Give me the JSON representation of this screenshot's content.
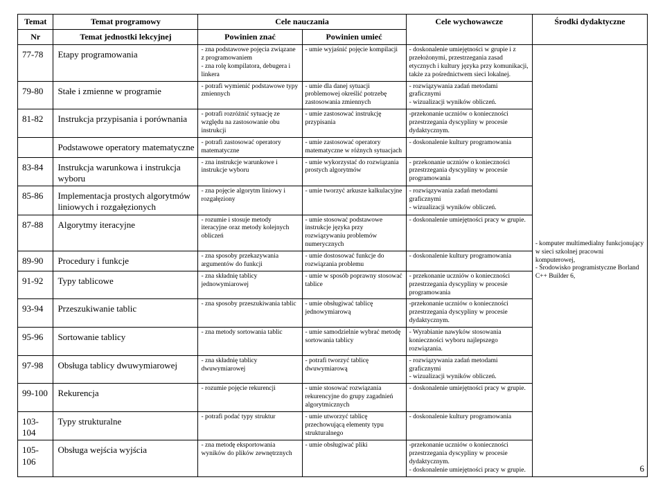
{
  "headers": {
    "temat": "Temat",
    "temat_prog": "Temat programowy",
    "cele_naucz": "Cele nauczania",
    "cele_wych": "Cele wychowawcze",
    "srodki": "Środki dydaktyczne",
    "nr": "Nr",
    "jednostka": "Temat jednostki lekcyjnej",
    "znac": "Powinien znać",
    "umiec": "Powinien umieć"
  },
  "resources": "- komputer multimedialny funkcjonujący w sieci szkolnej pracowni komputerowej,\n- Środowisko programistyczne Borland C++ Builder 6,",
  "rows": [
    {
      "nr": "77-78",
      "topic": "Etapy programowania",
      "know": "- zna podstawowe pojęcia związane z programowaniem\n- zna rolę kompilatora, debugera i linkera",
      "can": "- umie wyjaśnić pojęcie kompilacji",
      "edu": "- doskonalenie umiejętności w grupie i z przełożonymi, przestrzegania zasad etycznych i kultury języka przy komunikacji, także za pośrednictwem sieci lokalnej."
    },
    {
      "nr": "79-80",
      "topic": "Stałe i zmienne w programie",
      "know": "- potrafi wymienić podstawowe typy zmiennych",
      "can": "- umie dla danej sytuacji problemowej określić potrzebę zastosowania zmiennych",
      "edu": "- rozwiązywania zadań metodami graficznymi\n- wizualizacji wyników obliczeń."
    },
    {
      "nr": "81-82",
      "topic": "Instrukcja przypisania i porównania",
      "know": "- potrafi rozróżnić sytuację ze względu na zastosowanie obu instrukcji",
      "can": "- umie zastosować instrukcję przypisania",
      "edu": "-przekonanie uczniów o konieczności przestrzegania dyscypliny w procesie dydaktycznym."
    },
    {
      "nr": "",
      "topic": "Podstawowe operatory matematyczne",
      "know": "- potrafi zastosować operatory matematyczne",
      "can": "- umie zastosować operatory matematyczne w różnych sytuacjach",
      "edu": "- doskonalenie kultury programowania"
    },
    {
      "nr": "83-84",
      "topic": "Instrukcja warunkowa i instrukcja wyboru",
      "know": "- zna instrukcje warunkowe i instrukcje wyboru",
      "can": "- umie wykorzystać do rozwiązania prostych algorytmów",
      "edu": "- przekonanie uczniów o konieczności przestrzegania dyscypliny w procesie programowania"
    },
    {
      "nr": "85-86",
      "topic": "Implementacja prostych algorytmów liniowych i rozgałęzionych",
      "know": "- zna pojęcie algorytm liniowy i rozgałęziony",
      "can": "- umie tworzyć arkusze kalkulacyjne",
      "edu": "- rozwiązywania zadań metodami graficznymi\n- wizualizacji wyników obliczeń."
    },
    {
      "nr": "87-88",
      "topic": "Algorytmy iteracyjne",
      "know": "- rozumie i stosuje metody iteracyjne oraz metody kolejnych obliczeń",
      "can": "- umie stosować podstawowe instrukcje języka przy rozwiązywaniu problemów numerycznych",
      "edu": "- doskonalenie umiejętności pracy w grupie."
    },
    {
      "nr": "89-90",
      "topic": "Procedury i funkcje",
      "know": "- zna sposoby przekazywania argumentów do funkcji",
      "can": "- umie dostosować funkcje do rozwiązania problemu",
      "edu": "- doskonalenie kultury programowania"
    },
    {
      "nr": "91-92",
      "topic": "Typy tablicowe",
      "know": "- zna składnię tablicy jednowymiarowej",
      "can": "- umie w sposób poprawny stosować tablice",
      "edu": "- przekonanie uczniów o konieczności przestrzegania dyscypliny w procesie programowania"
    },
    {
      "nr": "93-94",
      "topic": "Przeszukiwanie tablic",
      "know": "- zna sposoby przeszukiwania tablic",
      "can": "- umie obsługiwać tablicę jednowymiarową",
      "edu": "-przekonanie uczniów o konieczności przestrzegania dyscypliny w procesie dydaktycznym."
    },
    {
      "nr": "95-96",
      "topic": "Sortowanie tablicy",
      "know": "- zna metody sortowania tablic",
      "can": "- umie samodzielnie wybrać metodę sortowania tablicy",
      "edu": "- Wyrabianie nawyków stosowania konieczności wyboru najlepszego rozwiązania."
    },
    {
      "nr": "97-98",
      "topic": "Obsługa tablicy dwuwymiarowej",
      "know": "- zna składnię tablicy dwuwymiarowej",
      "can": "- potrafi tworzyć tablicę dwuwymiarową",
      "edu": "- rozwiązywania zadań metodami graficznymi\n- wizualizacji wyników obliczeń."
    },
    {
      "nr": "99-100",
      "topic": "Rekurencja",
      "know": "- rozumie pojęcie rekurencji",
      "can": "- umie stosować rozwiązania rekurencyjne do grupy zagadnień algorytmicznych",
      "edu": "- doskonalenie umiejętności pracy w grupie."
    },
    {
      "nr": "103-104",
      "topic": "Typy strukturalne",
      "know": "- potrafi podać typy struktur",
      "can": "- umie utworzyć tablicę przechowującą elementy typu strukturalnego",
      "edu": "- doskonalenie kultury programowania"
    },
    {
      "nr": "105-106",
      "topic": "Obsługa wejścia wyjścia",
      "know": "- zna metodę eksportowania wyników do plików zewnętrznych",
      "can": "- umie obsługiwać pliki",
      "edu": "-przekonanie uczniów o konieczności przestrzegania dyscypliny w procesie dydaktycznym.\n- doskonalenie umiejętności pracy w grupie."
    }
  ],
  "page_number": "6"
}
